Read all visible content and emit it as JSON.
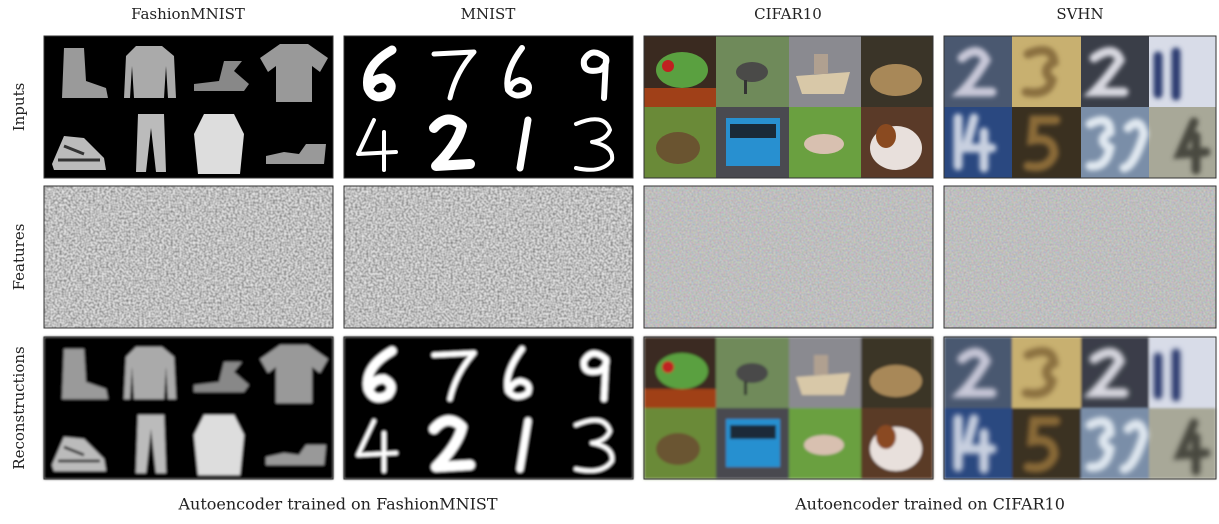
{
  "columns": [
    "FashionMNIST",
    "MNIST",
    "CIFAR10",
    "SVHN"
  ],
  "rows": [
    "Inputs",
    "Features",
    "Reconstructions"
  ],
  "captions": [
    "Autoencoder trained on FashionMNIST",
    "Autoencoder trained on CIFAR10"
  ]
}
